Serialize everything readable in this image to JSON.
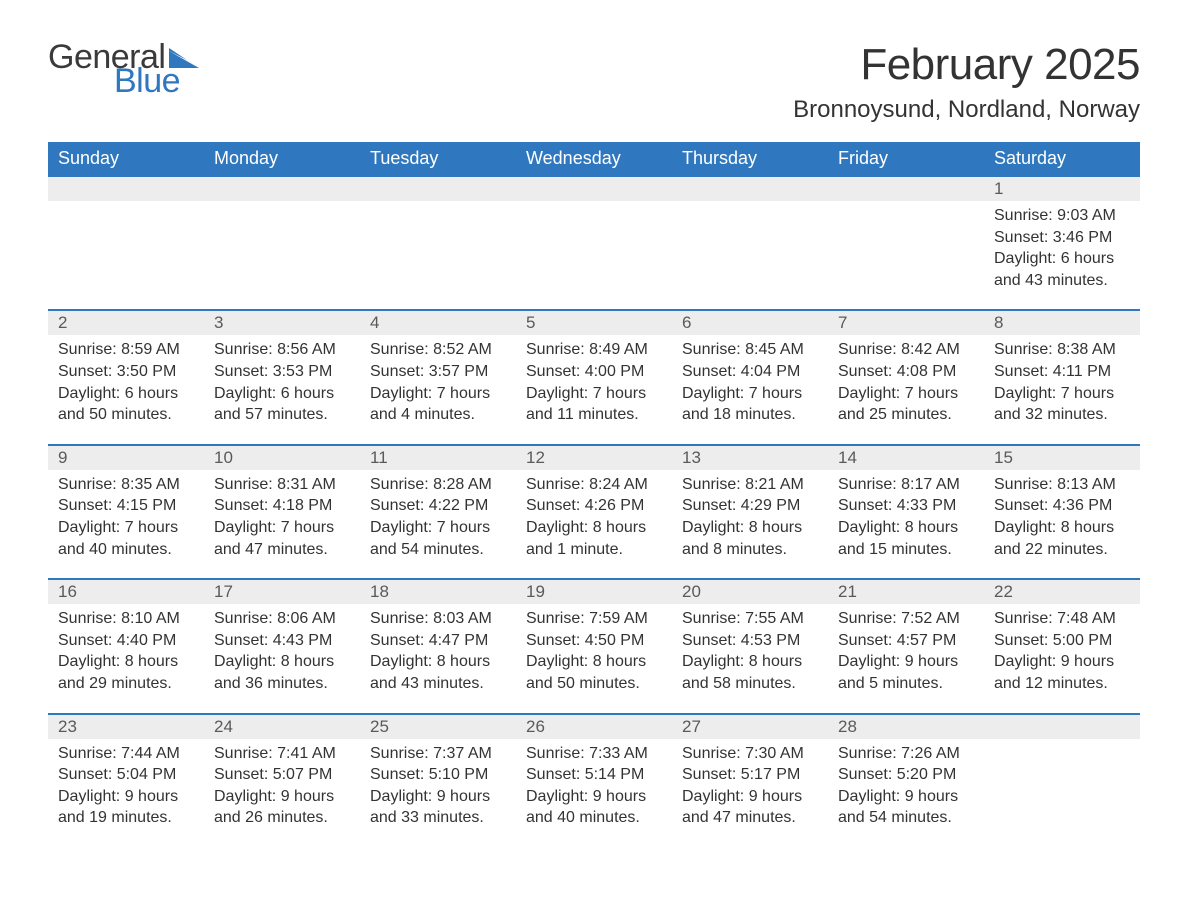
{
  "logo": {
    "text1": "General",
    "text2": "Blue",
    "flag_color": "#2f78bf"
  },
  "title": "February 2025",
  "location": "Bronnoysund, Nordland, Norway",
  "colors": {
    "header_bg": "#2f78bf",
    "header_text": "#ffffff",
    "row_band": "#ededed",
    "row_border": "#2f78bf",
    "body_text": "#333333",
    "page_bg": "#ffffff"
  },
  "typography": {
    "title_fontsize": 44,
    "location_fontsize": 24,
    "weekday_fontsize": 18,
    "daynum_fontsize": 17,
    "cell_fontsize": 16,
    "logo_fontsize": 34
  },
  "weekdays": [
    "Sunday",
    "Monday",
    "Tuesday",
    "Wednesday",
    "Thursday",
    "Friday",
    "Saturday"
  ],
  "weeks": [
    [
      null,
      null,
      null,
      null,
      null,
      null,
      {
        "n": "1",
        "sunrise": "Sunrise: 9:03 AM",
        "sunset": "Sunset: 3:46 PM",
        "day1": "Daylight: 6 hours",
        "day2": "and 43 minutes."
      }
    ],
    [
      {
        "n": "2",
        "sunrise": "Sunrise: 8:59 AM",
        "sunset": "Sunset: 3:50 PM",
        "day1": "Daylight: 6 hours",
        "day2": "and 50 minutes."
      },
      {
        "n": "3",
        "sunrise": "Sunrise: 8:56 AM",
        "sunset": "Sunset: 3:53 PM",
        "day1": "Daylight: 6 hours",
        "day2": "and 57 minutes."
      },
      {
        "n": "4",
        "sunrise": "Sunrise: 8:52 AM",
        "sunset": "Sunset: 3:57 PM",
        "day1": "Daylight: 7 hours",
        "day2": "and 4 minutes."
      },
      {
        "n": "5",
        "sunrise": "Sunrise: 8:49 AM",
        "sunset": "Sunset: 4:00 PM",
        "day1": "Daylight: 7 hours",
        "day2": "and 11 minutes."
      },
      {
        "n": "6",
        "sunrise": "Sunrise: 8:45 AM",
        "sunset": "Sunset: 4:04 PM",
        "day1": "Daylight: 7 hours",
        "day2": "and 18 minutes."
      },
      {
        "n": "7",
        "sunrise": "Sunrise: 8:42 AM",
        "sunset": "Sunset: 4:08 PM",
        "day1": "Daylight: 7 hours",
        "day2": "and 25 minutes."
      },
      {
        "n": "8",
        "sunrise": "Sunrise: 8:38 AM",
        "sunset": "Sunset: 4:11 PM",
        "day1": "Daylight: 7 hours",
        "day2": "and 32 minutes."
      }
    ],
    [
      {
        "n": "9",
        "sunrise": "Sunrise: 8:35 AM",
        "sunset": "Sunset: 4:15 PM",
        "day1": "Daylight: 7 hours",
        "day2": "and 40 minutes."
      },
      {
        "n": "10",
        "sunrise": "Sunrise: 8:31 AM",
        "sunset": "Sunset: 4:18 PM",
        "day1": "Daylight: 7 hours",
        "day2": "and 47 minutes."
      },
      {
        "n": "11",
        "sunrise": "Sunrise: 8:28 AM",
        "sunset": "Sunset: 4:22 PM",
        "day1": "Daylight: 7 hours",
        "day2": "and 54 minutes."
      },
      {
        "n": "12",
        "sunrise": "Sunrise: 8:24 AM",
        "sunset": "Sunset: 4:26 PM",
        "day1": "Daylight: 8 hours",
        "day2": "and 1 minute."
      },
      {
        "n": "13",
        "sunrise": "Sunrise: 8:21 AM",
        "sunset": "Sunset: 4:29 PM",
        "day1": "Daylight: 8 hours",
        "day2": "and 8 minutes."
      },
      {
        "n": "14",
        "sunrise": "Sunrise: 8:17 AM",
        "sunset": "Sunset: 4:33 PM",
        "day1": "Daylight: 8 hours",
        "day2": "and 15 minutes."
      },
      {
        "n": "15",
        "sunrise": "Sunrise: 8:13 AM",
        "sunset": "Sunset: 4:36 PM",
        "day1": "Daylight: 8 hours",
        "day2": "and 22 minutes."
      }
    ],
    [
      {
        "n": "16",
        "sunrise": "Sunrise: 8:10 AM",
        "sunset": "Sunset: 4:40 PM",
        "day1": "Daylight: 8 hours",
        "day2": "and 29 minutes."
      },
      {
        "n": "17",
        "sunrise": "Sunrise: 8:06 AM",
        "sunset": "Sunset: 4:43 PM",
        "day1": "Daylight: 8 hours",
        "day2": "and 36 minutes."
      },
      {
        "n": "18",
        "sunrise": "Sunrise: 8:03 AM",
        "sunset": "Sunset: 4:47 PM",
        "day1": "Daylight: 8 hours",
        "day2": "and 43 minutes."
      },
      {
        "n": "19",
        "sunrise": "Sunrise: 7:59 AM",
        "sunset": "Sunset: 4:50 PM",
        "day1": "Daylight: 8 hours",
        "day2": "and 50 minutes."
      },
      {
        "n": "20",
        "sunrise": "Sunrise: 7:55 AM",
        "sunset": "Sunset: 4:53 PM",
        "day1": "Daylight: 8 hours",
        "day2": "and 58 minutes."
      },
      {
        "n": "21",
        "sunrise": "Sunrise: 7:52 AM",
        "sunset": "Sunset: 4:57 PM",
        "day1": "Daylight: 9 hours",
        "day2": "and 5 minutes."
      },
      {
        "n": "22",
        "sunrise": "Sunrise: 7:48 AM",
        "sunset": "Sunset: 5:00 PM",
        "day1": "Daylight: 9 hours",
        "day2": "and 12 minutes."
      }
    ],
    [
      {
        "n": "23",
        "sunrise": "Sunrise: 7:44 AM",
        "sunset": "Sunset: 5:04 PM",
        "day1": "Daylight: 9 hours",
        "day2": "and 19 minutes."
      },
      {
        "n": "24",
        "sunrise": "Sunrise: 7:41 AM",
        "sunset": "Sunset: 5:07 PM",
        "day1": "Daylight: 9 hours",
        "day2": "and 26 minutes."
      },
      {
        "n": "25",
        "sunrise": "Sunrise: 7:37 AM",
        "sunset": "Sunset: 5:10 PM",
        "day1": "Daylight: 9 hours",
        "day2": "and 33 minutes."
      },
      {
        "n": "26",
        "sunrise": "Sunrise: 7:33 AM",
        "sunset": "Sunset: 5:14 PM",
        "day1": "Daylight: 9 hours",
        "day2": "and 40 minutes."
      },
      {
        "n": "27",
        "sunrise": "Sunrise: 7:30 AM",
        "sunset": "Sunset: 5:17 PM",
        "day1": "Daylight: 9 hours",
        "day2": "and 47 minutes."
      },
      {
        "n": "28",
        "sunrise": "Sunrise: 7:26 AM",
        "sunset": "Sunset: 5:20 PM",
        "day1": "Daylight: 9 hours",
        "day2": "and 54 minutes."
      },
      null
    ]
  ]
}
